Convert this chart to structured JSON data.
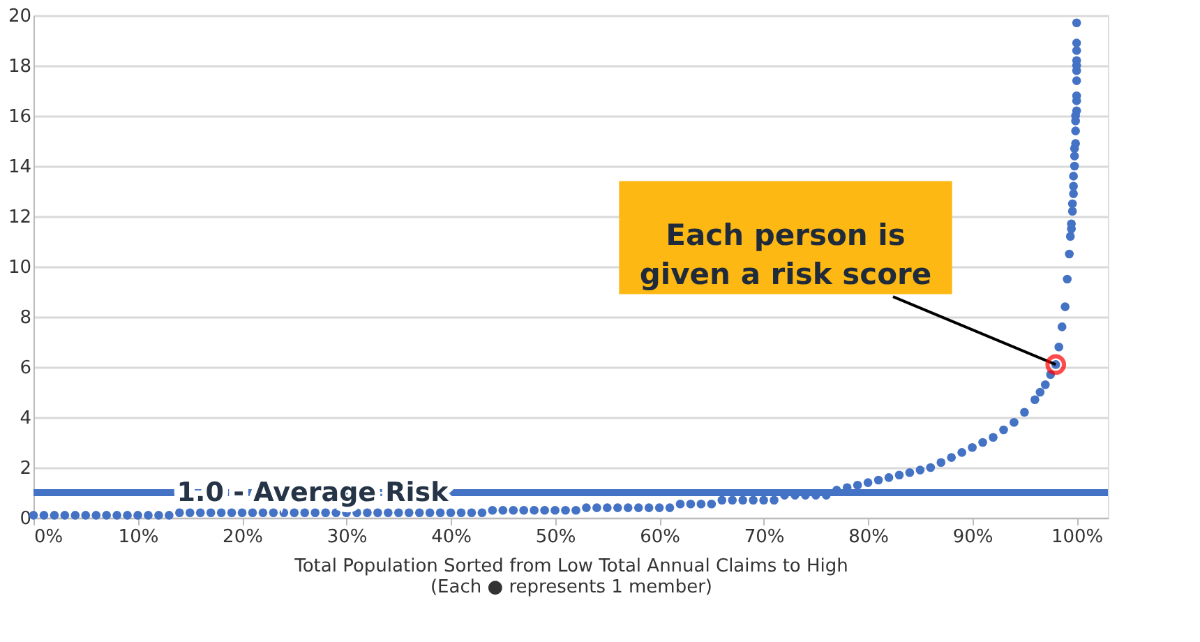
{
  "chart_data": {
    "type": "scatter",
    "xlabel": "Total Population Sorted from Low Total Annual Claims to High\n(Each ● represents 1 member)",
    "x": [
      0,
      1,
      2,
      3,
      4,
      5,
      6,
      7,
      8,
      9,
      10,
      11,
      12,
      13,
      14,
      15,
      16,
      17,
      18,
      19,
      20,
      21,
      22,
      23,
      24,
      25,
      26,
      27,
      28,
      29,
      30,
      31,
      32,
      33,
      34,
      35,
      36,
      37,
      38,
      39,
      40,
      41,
      42,
      43,
      44,
      45,
      46,
      47,
      48,
      49,
      50,
      51,
      52,
      53,
      54,
      55,
      56,
      57,
      58,
      59,
      60,
      61,
      62,
      63,
      64,
      65,
      66,
      67,
      68,
      69,
      70,
      71,
      72,
      73,
      74,
      75,
      76,
      77,
      78,
      79,
      80,
      81,
      82,
      83,
      84,
      85,
      86,
      87,
      88,
      89,
      90,
      91,
      92,
      93,
      94,
      95,
      96,
      96.5,
      97,
      97.5,
      98,
      98.3,
      98.6,
      98.9,
      99.1,
      99.3,
      99.4,
      99.5,
      99.5,
      99.6,
      99.6,
      99.7,
      99.7,
      99.7,
      99.8,
      99.8,
      99.8,
      99.9,
      99.9,
      99.9,
      99.9,
      100,
      100,
      100,
      100,
      100,
      100,
      100,
      100,
      100,
      100
    ],
    "series": [
      {
        "color": "#4472c4",
        "values": [
          0.1,
          0.1,
          0.1,
          0.1,
          0.1,
          0.1,
          0.1,
          0.1,
          0.1,
          0.1,
          0.1,
          0.1,
          0.1,
          0.1,
          0.2,
          0.2,
          0.2,
          0.2,
          0.2,
          0.2,
          0.2,
          0.2,
          0.2,
          0.2,
          0.2,
          0.2,
          0.2,
          0.2,
          0.2,
          0.2,
          0.2,
          0.2,
          0.2,
          0.2,
          0.2,
          0.2,
          0.2,
          0.2,
          0.2,
          0.2,
          0.2,
          0.2,
          0.2,
          0.2,
          0.3,
          0.3,
          0.3,
          0.3,
          0.3,
          0.3,
          0.3,
          0.3,
          0.3,
          0.4,
          0.4,
          0.4,
          0.4,
          0.4,
          0.4,
          0.4,
          0.4,
          0.4,
          0.55,
          0.55,
          0.55,
          0.55,
          0.7,
          0.7,
          0.7,
          0.7,
          0.7,
          0.7,
          0.9,
          0.9,
          0.9,
          0.9,
          0.9,
          1.1,
          1.2,
          1.3,
          1.4,
          1.5,
          1.6,
          1.7,
          1.8,
          1.9,
          2.0,
          2.2,
          2.4,
          2.6,
          2.8,
          3.0,
          3.2,
          3.5,
          3.8,
          4.2,
          4.7,
          5.0,
          5.3,
          5.7,
          6.1,
          6.8,
          7.6,
          8.4,
          9.5,
          10.5,
          11.2,
          11.5,
          11.7,
          12.2,
          12.5,
          12.9,
          13.2,
          13.6,
          14.0,
          14.4,
          14.7,
          14.9,
          15.4,
          15.8,
          16.0,
          16.2,
          16.6,
          16.8,
          17.4,
          17.8,
          18.0,
          18.2,
          18.6,
          18.9,
          19.7
        ]
      }
    ],
    "marker": "circle",
    "xlim": [
      0,
      103
    ],
    "xticks": [
      {
        "value": 0,
        "label": "0%"
      },
      {
        "value": 10,
        "label": "10%"
      },
      {
        "value": 20,
        "label": "20%"
      },
      {
        "value": 30,
        "label": "30%"
      },
      {
        "value": 40,
        "label": "40%"
      },
      {
        "value": 50,
        "label": "50%"
      },
      {
        "value": 60,
        "label": "60%"
      },
      {
        "value": 70,
        "label": "70%"
      },
      {
        "value": 80,
        "label": "80%"
      },
      {
        "value": 90,
        "label": "90%"
      },
      {
        "value": 100,
        "label": "100%"
      }
    ],
    "ylim": [
      0,
      20
    ],
    "yticks": [
      0,
      2,
      4,
      6,
      8,
      10,
      12,
      14,
      16,
      18,
      20
    ],
    "grid": "y",
    "ref_lines": [
      {
        "axis": "y",
        "value": 1,
        "label": "1.0 - Average Risk",
        "color": "#4472c4"
      }
    ],
    "annotations": [
      {
        "text": "Each person is\ngiven a risk score",
        "x": 98,
        "y": 6.1
      }
    ]
  }
}
